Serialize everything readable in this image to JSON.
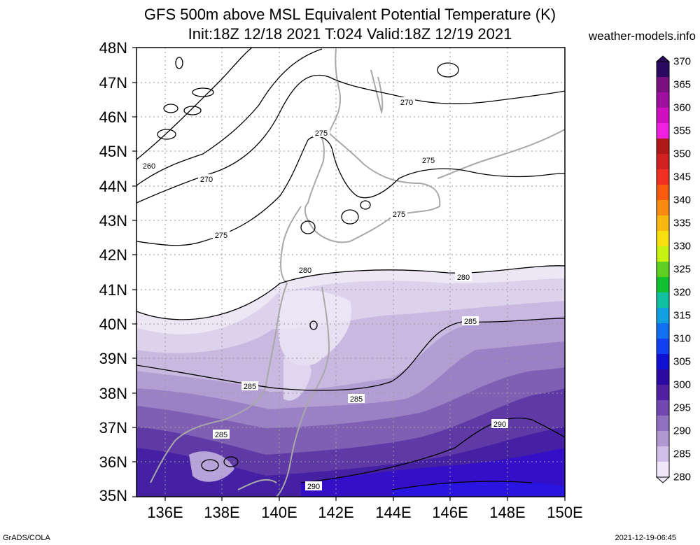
{
  "header": {
    "title_line1": "GFS 500m above MSL Equivalent Potential Temperature (K)",
    "title_line2": "Init:18Z 12/18 2021 T:024 Valid:18Z 12/19 2021",
    "site": "weather-models.info"
  },
  "footer": {
    "left": "GrADS/COLA",
    "right": "2021-12-19-06:45"
  },
  "map": {
    "lat_labels": [
      "48N",
      "47N",
      "46N",
      "45N",
      "44N",
      "43N",
      "42N",
      "41N",
      "40N",
      "39N",
      "38N",
      "37N",
      "36N",
      "35N"
    ],
    "lon_labels": [
      "136E",
      "138E",
      "140E",
      "142E",
      "144E",
      "146E",
      "148E",
      "150E"
    ],
    "contour_labels": [
      {
        "text": "260"
      },
      {
        "text": "270"
      },
      {
        "text": "270"
      },
      {
        "text": "275"
      },
      {
        "text": "275"
      },
      {
        "text": "275"
      },
      {
        "text": "275"
      },
      {
        "text": "280"
      },
      {
        "text": "280"
      },
      {
        "text": "285"
      },
      {
        "text": "285"
      },
      {
        "text": "285"
      },
      {
        "text": "285"
      },
      {
        "text": "290"
      },
      {
        "text": "290"
      }
    ]
  },
  "colorbar": {
    "labels": [
      "370",
      "365",
      "360",
      "355",
      "350",
      "345",
      "340",
      "335",
      "330",
      "325",
      "320",
      "315",
      "310",
      "305",
      "300",
      "295",
      "290",
      "285",
      "280"
    ],
    "colors": [
      "#2a0a60",
      "#7a1080",
      "#a010a0",
      "#d010c0",
      "#f020e0",
      "#b01818",
      "#d02020",
      "#f03020",
      "#f85a10",
      "#f88c10",
      "#f8b810",
      "#f8e010",
      "#c8f010",
      "#60d020",
      "#10c030",
      "#10c0a0",
      "#10a0e0",
      "#1070f0",
      "#1040f0",
      "#1010d0",
      "#2a0aa0",
      "#5020a0",
      "#7048b0",
      "#9070c0",
      "#b098d0",
      "#d0c0e8",
      "#f0e8f8"
    ]
  }
}
